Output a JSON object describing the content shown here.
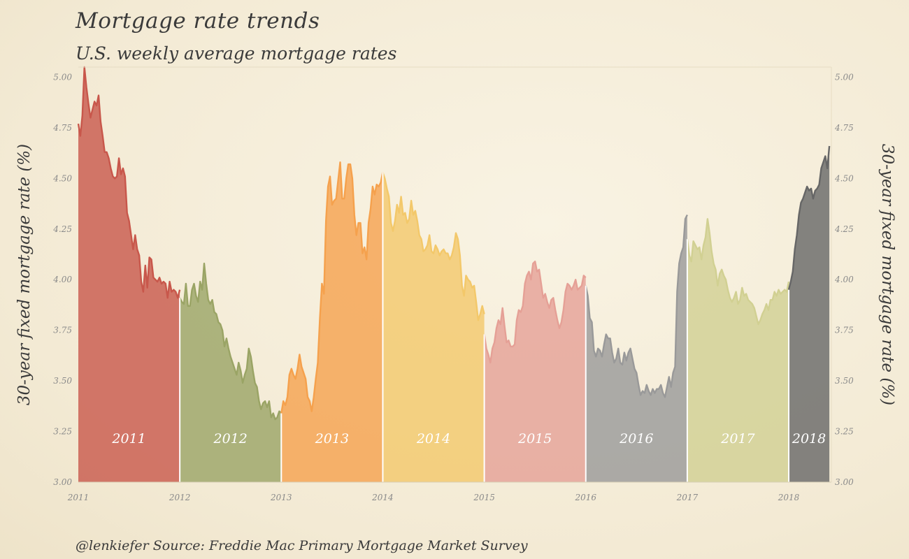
{
  "title": "Mortgage rate trends",
  "subtitle": "U.S. weekly average mortgage rates",
  "caption": "@lenkiefer  Source: Freddie Mac Primary Mortgage Market Survey",
  "chart_data": {
    "type": "area",
    "title": "Mortgage rate trends",
    "subtitle": "U.S. weekly average mortgage rates",
    "ylabel": "30-year fixed mortgage rate (%)",
    "ylabel_right": "30-year fixed mortgage rate (%)",
    "xlabel": "",
    "ylim": [
      3.0,
      5.05
    ],
    "xlim": [
      2011.0,
      2018.42
    ],
    "y_ticks": [
      "3.00",
      "3.25",
      "3.50",
      "3.75",
      "4.00",
      "4.25",
      "4.50",
      "4.75",
      "5.00"
    ],
    "x_ticks": [
      "2011",
      "2012",
      "2013",
      "2014",
      "2015",
      "2016",
      "2017",
      "2018"
    ],
    "grid": false,
    "legend": "none",
    "series": [
      {
        "name": "2011",
        "color": "#c8574b",
        "x": [
          2011.0,
          2011.02,
          2011.04,
          2011.06,
          2011.08,
          2011.1,
          2011.12,
          2011.14,
          2011.16,
          2011.18,
          2011.2,
          2011.22,
          2011.24,
          2011.26,
          2011.28,
          2011.3,
          2011.32,
          2011.34,
          2011.36,
          2011.38,
          2011.4,
          2011.42,
          2011.44,
          2011.46,
          2011.48,
          2011.5,
          2011.52,
          2011.54,
          2011.56,
          2011.58,
          2011.6,
          2011.62,
          2011.64,
          2011.66,
          2011.68,
          2011.7,
          2011.72,
          2011.74,
          2011.76,
          2011.78,
          2011.8,
          2011.82,
          2011.84,
          2011.86,
          2011.88,
          2011.9,
          2011.92,
          2011.94,
          2011.96,
          2011.98,
          2012.0
        ],
        "y": [
          4.77,
          4.71,
          4.81,
          5.05,
          4.95,
          4.87,
          4.8,
          4.84,
          4.88,
          4.86,
          4.91,
          4.78,
          4.71,
          4.63,
          4.63,
          4.6,
          4.55,
          4.51,
          4.5,
          4.51,
          4.6,
          4.52,
          4.55,
          4.51,
          4.33,
          4.29,
          4.22,
          4.15,
          4.22,
          4.15,
          4.12,
          3.99,
          3.94,
          4.07,
          3.96,
          4.11,
          4.1,
          4.01,
          4.0,
          3.99,
          4.01,
          3.98,
          3.99,
          3.98,
          3.91,
          3.99,
          3.94,
          3.95,
          3.94,
          3.91,
          3.95
        ]
      },
      {
        "name": "2012",
        "color": "#9aa465",
        "x": [
          2012.0,
          2012.02,
          2012.04,
          2012.06,
          2012.08,
          2012.1,
          2012.12,
          2012.14,
          2012.16,
          2012.18,
          2012.2,
          2012.22,
          2012.24,
          2012.26,
          2012.28,
          2012.3,
          2012.32,
          2012.34,
          2012.36,
          2012.38,
          2012.4,
          2012.42,
          2012.44,
          2012.46,
          2012.48,
          2012.5,
          2012.52,
          2012.54,
          2012.56,
          2012.58,
          2012.6,
          2012.62,
          2012.64,
          2012.66,
          2012.68,
          2012.7,
          2012.72,
          2012.74,
          2012.76,
          2012.78,
          2012.8,
          2012.82,
          2012.84,
          2012.86,
          2012.88,
          2012.9,
          2012.92,
          2012.94,
          2012.96,
          2012.98,
          2013.0
        ],
        "y": [
          3.91,
          3.89,
          3.88,
          3.98,
          3.87,
          3.87,
          3.95,
          3.98,
          3.92,
          3.89,
          3.99,
          3.95,
          4.08,
          3.98,
          3.9,
          3.88,
          3.9,
          3.84,
          3.83,
          3.79,
          3.78,
          3.75,
          3.67,
          3.71,
          3.66,
          3.62,
          3.59,
          3.56,
          3.53,
          3.59,
          3.55,
          3.49,
          3.53,
          3.56,
          3.66,
          3.62,
          3.55,
          3.49,
          3.47,
          3.4,
          3.36,
          3.39,
          3.4,
          3.37,
          3.4,
          3.32,
          3.34,
          3.31,
          3.32,
          3.35,
          3.34
        ]
      },
      {
        "name": "2013",
        "color": "#f5a14d",
        "x": [
          2013.0,
          2013.02,
          2013.04,
          2013.06,
          2013.08,
          2013.1,
          2013.12,
          2013.14,
          2013.16,
          2013.18,
          2013.2,
          2013.22,
          2013.24,
          2013.26,
          2013.28,
          2013.3,
          2013.32,
          2013.34,
          2013.36,
          2013.38,
          2013.4,
          2013.42,
          2013.44,
          2013.46,
          2013.48,
          2013.5,
          2013.52,
          2013.54,
          2013.56,
          2013.58,
          2013.6,
          2013.62,
          2013.64,
          2013.66,
          2013.68,
          2013.7,
          2013.72,
          2013.74,
          2013.76,
          2013.78,
          2013.8,
          2013.82,
          2013.84,
          2013.86,
          2013.88,
          2013.9,
          2013.92,
          2013.94,
          2013.96,
          2013.98,
          2014.0
        ],
        "y": [
          3.34,
          3.4,
          3.38,
          3.42,
          3.53,
          3.56,
          3.53,
          3.51,
          3.56,
          3.63,
          3.57,
          3.54,
          3.51,
          3.42,
          3.4,
          3.35,
          3.42,
          3.51,
          3.59,
          3.81,
          3.98,
          3.93,
          4.29,
          4.46,
          4.51,
          4.37,
          4.39,
          4.4,
          4.49,
          4.58,
          4.4,
          4.4,
          4.5,
          4.57,
          4.57,
          4.5,
          4.32,
          4.22,
          4.28,
          4.28,
          4.13,
          4.16,
          4.1,
          4.28,
          4.35,
          4.46,
          4.42,
          4.47,
          4.46,
          4.48,
          4.53
        ]
      },
      {
        "name": "2014",
        "color": "#f3c86a",
        "x": [
          2014.0,
          2014.02,
          2014.04,
          2014.06,
          2014.08,
          2014.1,
          2014.12,
          2014.14,
          2014.16,
          2014.18,
          2014.2,
          2014.22,
          2014.24,
          2014.26,
          2014.28,
          2014.3,
          2014.32,
          2014.34,
          2014.36,
          2014.38,
          2014.4,
          2014.42,
          2014.44,
          2014.46,
          2014.48,
          2014.5,
          2014.52,
          2014.54,
          2014.56,
          2014.58,
          2014.6,
          2014.62,
          2014.64,
          2014.66,
          2014.68,
          2014.7,
          2014.72,
          2014.74,
          2014.76,
          2014.78,
          2014.8,
          2014.82,
          2014.84,
          2014.86,
          2014.88,
          2014.9,
          2014.92,
          2014.94,
          2014.96,
          2014.98,
          2015.0
        ],
        "y": [
          4.53,
          4.5,
          4.45,
          4.41,
          4.28,
          4.24,
          4.29,
          4.37,
          4.33,
          4.41,
          4.32,
          4.33,
          4.28,
          4.3,
          4.39,
          4.32,
          4.34,
          4.29,
          4.22,
          4.2,
          4.14,
          4.15,
          4.17,
          4.22,
          4.14,
          4.13,
          4.17,
          4.15,
          4.12,
          4.14,
          4.15,
          4.13,
          4.13,
          4.1,
          4.12,
          4.16,
          4.23,
          4.2,
          4.12,
          3.97,
          3.92,
          4.02,
          4.0,
          3.99,
          3.96,
          3.97,
          3.89,
          3.8,
          3.83,
          3.87,
          3.83
        ]
      },
      {
        "name": "2015",
        "color": "#e5a096",
        "x": [
          2015.0,
          2015.02,
          2015.04,
          2015.06,
          2015.08,
          2015.1,
          2015.12,
          2015.14,
          2015.16,
          2015.18,
          2015.2,
          2015.22,
          2015.24,
          2015.26,
          2015.28,
          2015.3,
          2015.32,
          2015.34,
          2015.36,
          2015.38,
          2015.4,
          2015.42,
          2015.44,
          2015.46,
          2015.48,
          2015.5,
          2015.52,
          2015.54,
          2015.56,
          2015.58,
          2015.6,
          2015.62,
          2015.64,
          2015.66,
          2015.68,
          2015.7,
          2015.72,
          2015.74,
          2015.76,
          2015.78,
          2015.8,
          2015.82,
          2015.84,
          2015.86,
          2015.88,
          2015.9,
          2015.92,
          2015.94,
          2015.96,
          2015.98,
          2016.0
        ],
        "y": [
          3.73,
          3.66,
          3.63,
          3.59,
          3.66,
          3.69,
          3.76,
          3.8,
          3.78,
          3.86,
          3.77,
          3.69,
          3.7,
          3.67,
          3.67,
          3.68,
          3.8,
          3.85,
          3.84,
          3.87,
          3.98,
          4.02,
          4.04,
          4.0,
          4.08,
          4.09,
          4.04,
          4.05,
          3.98,
          3.91,
          3.93,
          3.89,
          3.86,
          3.9,
          3.91,
          3.85,
          3.8,
          3.76,
          3.79,
          3.85,
          3.94,
          3.98,
          3.97,
          3.95,
          3.97,
          4.0,
          3.95,
          3.96,
          3.97,
          4.02,
          4.01
        ]
      },
      {
        "name": "2016",
        "color": "#999999",
        "x": [
          2016.0,
          2016.02,
          2016.04,
          2016.06,
          2016.08,
          2016.1,
          2016.12,
          2016.14,
          2016.16,
          2016.18,
          2016.2,
          2016.22,
          2016.24,
          2016.26,
          2016.28,
          2016.3,
          2016.32,
          2016.34,
          2016.36,
          2016.38,
          2016.4,
          2016.42,
          2016.44,
          2016.46,
          2016.48,
          2016.5,
          2016.52,
          2016.54,
          2016.56,
          2016.58,
          2016.6,
          2016.62,
          2016.64,
          2016.66,
          2016.68,
          2016.7,
          2016.72,
          2016.74,
          2016.76,
          2016.78,
          2016.8,
          2016.82,
          2016.84,
          2016.86,
          2016.88,
          2016.9,
          2016.92,
          2016.94,
          2016.96,
          2016.98,
          2017.0
        ],
        "y": [
          3.97,
          3.92,
          3.81,
          3.79,
          3.65,
          3.62,
          3.66,
          3.65,
          3.62,
          3.68,
          3.73,
          3.71,
          3.71,
          3.64,
          3.59,
          3.61,
          3.66,
          3.59,
          3.58,
          3.64,
          3.6,
          3.64,
          3.66,
          3.61,
          3.56,
          3.54,
          3.48,
          3.43,
          3.45,
          3.44,
          3.48,
          3.45,
          3.43,
          3.46,
          3.44,
          3.46,
          3.46,
          3.48,
          3.44,
          3.42,
          3.47,
          3.52,
          3.47,
          3.54,
          3.57,
          3.94,
          4.08,
          4.13,
          4.16,
          4.3,
          4.32
        ]
      },
      {
        "name": "2017",
        "color": "#d1d092",
        "x": [
          2017.0,
          2017.02,
          2017.04,
          2017.06,
          2017.08,
          2017.1,
          2017.12,
          2017.14,
          2017.16,
          2017.18,
          2017.2,
          2017.22,
          2017.24,
          2017.26,
          2017.28,
          2017.3,
          2017.32,
          2017.34,
          2017.36,
          2017.38,
          2017.4,
          2017.42,
          2017.44,
          2017.46,
          2017.48,
          2017.5,
          2017.52,
          2017.54,
          2017.56,
          2017.58,
          2017.6,
          2017.62,
          2017.64,
          2017.66,
          2017.68,
          2017.7,
          2017.72,
          2017.74,
          2017.76,
          2017.78,
          2017.8,
          2017.82,
          2017.84,
          2017.86,
          2017.88,
          2017.9,
          2017.92,
          2017.94,
          2017.96,
          2017.98,
          2018.0
        ],
        "y": [
          4.2,
          4.12,
          4.09,
          4.19,
          4.17,
          4.15,
          4.16,
          4.1,
          4.17,
          4.21,
          4.3,
          4.23,
          4.14,
          4.08,
          4.05,
          3.97,
          4.03,
          4.05,
          4.02,
          4.0,
          3.95,
          3.91,
          3.89,
          3.91,
          3.94,
          3.88,
          3.9,
          3.96,
          3.92,
          3.93,
          3.9,
          3.89,
          3.88,
          3.86,
          3.82,
          3.78,
          3.8,
          3.83,
          3.85,
          3.88,
          3.85,
          3.9,
          3.9,
          3.94,
          3.92,
          3.95,
          3.93,
          3.94,
          3.95,
          3.94,
          3.99
        ]
      },
      {
        "name": "2018",
        "color": "#666666",
        "x": [
          2018.0,
          2018.02,
          2018.04,
          2018.06,
          2018.08,
          2018.1,
          2018.12,
          2018.14,
          2018.16,
          2018.18,
          2018.2,
          2018.22,
          2018.24,
          2018.26,
          2018.28,
          2018.3,
          2018.32,
          2018.34,
          2018.36,
          2018.38,
          2018.4
        ],
        "y": [
          3.95,
          3.99,
          4.04,
          4.15,
          4.22,
          4.32,
          4.38,
          4.4,
          4.43,
          4.46,
          4.44,
          4.45,
          4.4,
          4.44,
          4.45,
          4.47,
          4.55,
          4.58,
          4.61,
          4.55,
          4.66
        ]
      }
    ]
  }
}
